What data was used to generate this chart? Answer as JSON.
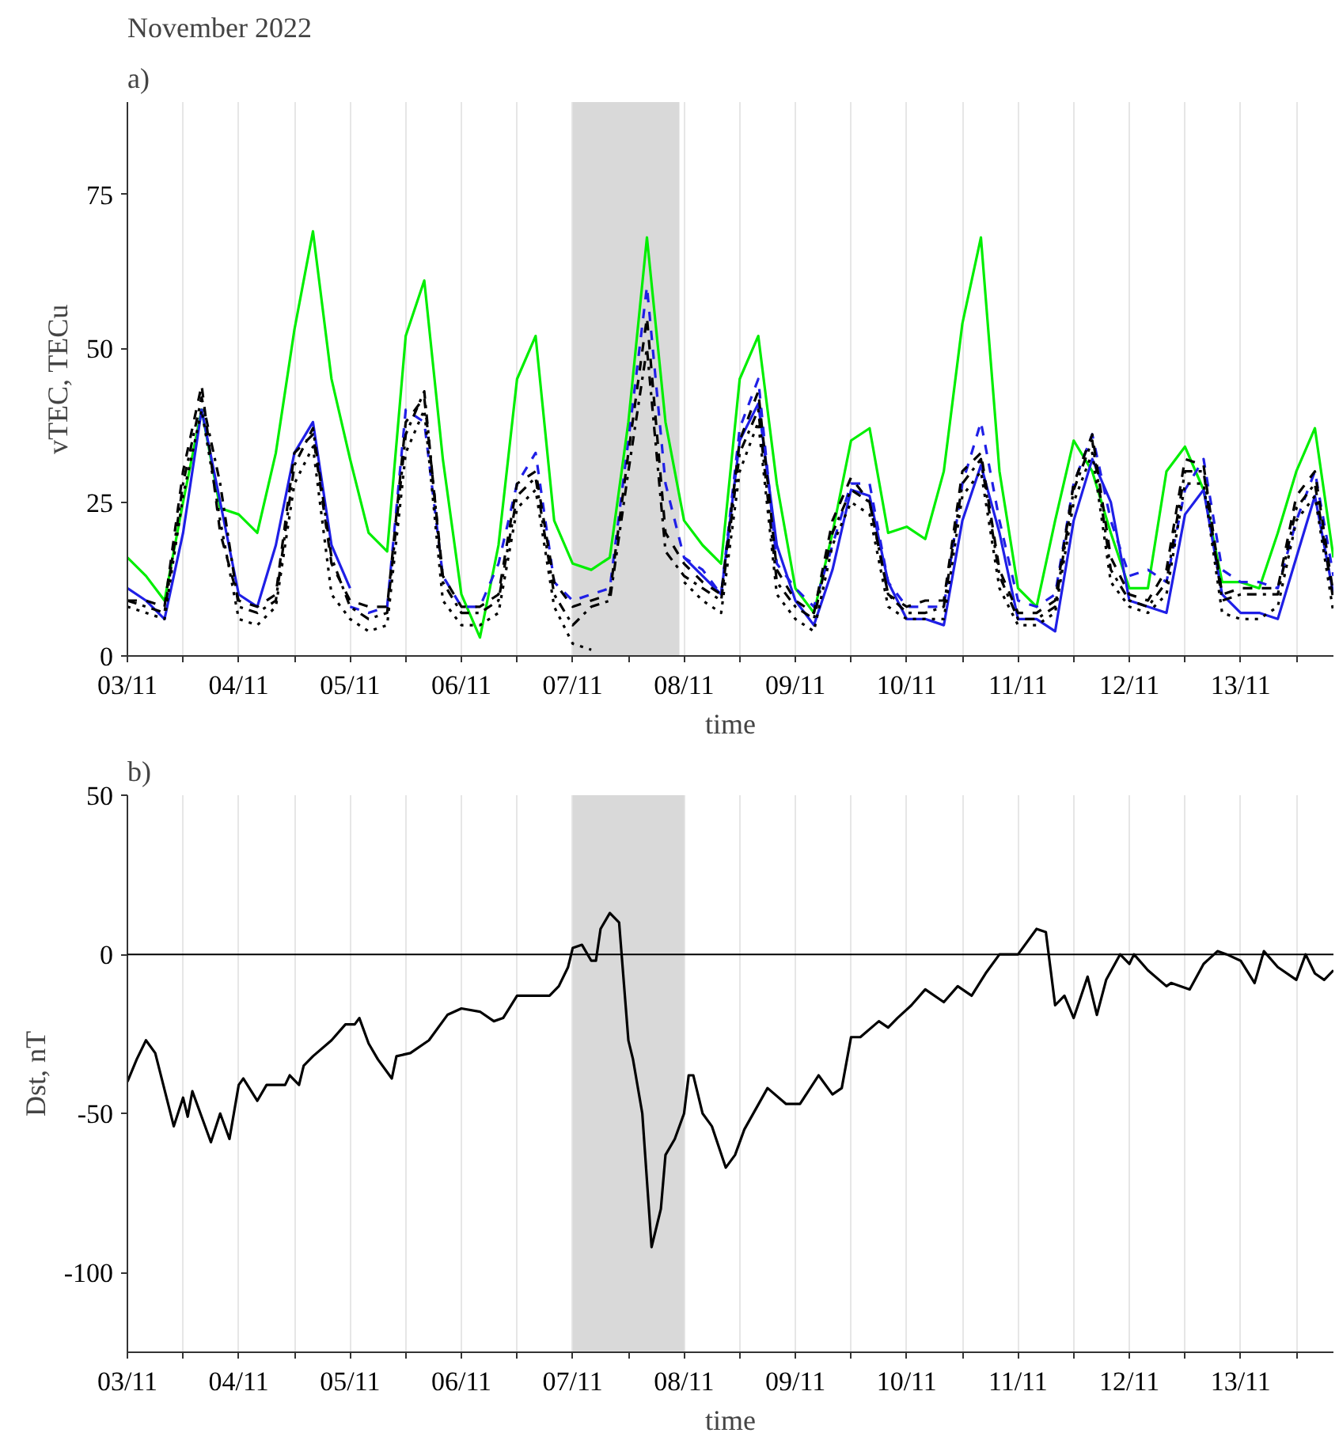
{
  "chart_data": [
    {
      "type": "line",
      "title": "November 2022",
      "subtitle": "a)",
      "xlabel": "time",
      "ylabel": "vTEC, TECu",
      "x": [
        "2022-11-03T00:00",
        "2022-11-03T04:00",
        "2022-11-03T08:00",
        "2022-11-03T12:00",
        "2022-11-03T16:00",
        "2022-11-03T20:00",
        "2022-11-04T00:00",
        "2022-11-04T04:00",
        "2022-11-04T08:00",
        "2022-11-04T12:00",
        "2022-11-04T16:00",
        "2022-11-04T20:00",
        "2022-11-05T00:00",
        "2022-11-05T04:00",
        "2022-11-05T08:00",
        "2022-11-05T12:00",
        "2022-11-05T16:00",
        "2022-11-05T20:00",
        "2022-11-06T00:00",
        "2022-11-06T04:00",
        "2022-11-06T08:00",
        "2022-11-06T12:00",
        "2022-11-06T16:00",
        "2022-11-06T20:00",
        "2022-11-07T00:00",
        "2022-11-07T04:00",
        "2022-11-07T08:00",
        "2022-11-07T12:00",
        "2022-11-07T16:00",
        "2022-11-07T20:00",
        "2022-11-08T00:00",
        "2022-11-08T04:00",
        "2022-11-08T08:00",
        "2022-11-08T12:00",
        "2022-11-08T16:00",
        "2022-11-08T20:00",
        "2022-11-09T00:00",
        "2022-11-09T04:00",
        "2022-11-09T08:00",
        "2022-11-09T12:00",
        "2022-11-09T16:00",
        "2022-11-09T20:00",
        "2022-11-10T00:00",
        "2022-11-10T04:00",
        "2022-11-10T08:00",
        "2022-11-10T12:00",
        "2022-11-10T16:00",
        "2022-11-10T20:00",
        "2022-11-11T00:00",
        "2022-11-11T04:00",
        "2022-11-11T08:00",
        "2022-11-11T12:00",
        "2022-11-11T16:00",
        "2022-11-11T20:00",
        "2022-11-12T00:00",
        "2022-11-12T04:00",
        "2022-11-12T08:00",
        "2022-11-12T12:00",
        "2022-11-12T16:00",
        "2022-11-12T20:00",
        "2022-11-13T00:00",
        "2022-11-13T04:00",
        "2022-11-13T08:00",
        "2022-11-13T12:00",
        "2022-11-13T16:00",
        "2022-11-13T20:00"
      ],
      "series": [
        {
          "color": "#00ee00",
          "line_style": "solid",
          "values": [
            16,
            13,
            9,
            25,
            40,
            24,
            23,
            20,
            33,
            53,
            69,
            45,
            32,
            20,
            17,
            52,
            61,
            32,
            10,
            3,
            18,
            45,
            52,
            22,
            15,
            14,
            16,
            38,
            68,
            38,
            22,
            18,
            15,
            45,
            52,
            28,
            11,
            7,
            20,
            35,
            37,
            20,
            21,
            19,
            30,
            54,
            68,
            30,
            11,
            8,
            22,
            35,
            30,
            20,
            11,
            11,
            30,
            34,
            27,
            12,
            12,
            11,
            20,
            30,
            37,
            16
          ]
        },
        {
          "color": "#1f1fe6",
          "line_style": "solid",
          "values": [
            11,
            9,
            6,
            20,
            40,
            25,
            10,
            8,
            18,
            33,
            38,
            18,
            11,
            null,
            null,
            null,
            null,
            null,
            null,
            null,
            null,
            null,
            null,
            null,
            null,
            null,
            null,
            null,
            null,
            null,
            16,
            13,
            10,
            35,
            41,
            18,
            9,
            5,
            14,
            27,
            26,
            12,
            6,
            6,
            5,
            22,
            31,
            20,
            6,
            6,
            4,
            22,
            32,
            25,
            9,
            8,
            7,
            23,
            27,
            10,
            7,
            7,
            6,
            16,
            26,
            10
          ]
        },
        {
          "color": "#1f1fe6",
          "line_style": "dashed",
          "values": [
            null,
            null,
            null,
            null,
            null,
            null,
            null,
            null,
            null,
            null,
            null,
            null,
            8,
            7,
            8,
            40,
            38,
            13,
            8,
            8,
            15,
            28,
            33,
            12,
            9,
            10,
            11,
            35,
            60,
            28,
            16,
            14,
            10,
            37,
            45,
            15,
            11,
            8,
            18,
            28,
            28,
            12,
            8,
            8,
            8,
            28,
            38,
            22,
            9,
            8,
            10,
            28,
            36,
            22,
            13,
            14,
            12,
            27,
            32,
            14,
            12,
            12,
            11,
            22,
            30,
            13
          ]
        },
        {
          "color": "#000000",
          "line_style": "dashed",
          "values": [
            9,
            9,
            8,
            30,
            44,
            20,
            9,
            8,
            10,
            33,
            36,
            15,
            9,
            8,
            8,
            38,
            42,
            13,
            8,
            8,
            10,
            28,
            30,
            12,
            8,
            9,
            10,
            33,
            55,
            20,
            15,
            12,
            10,
            35,
            43,
            14,
            9,
            7,
            22,
            29,
            25,
            10,
            8,
            9,
            9,
            30,
            33,
            14,
            7,
            7,
            9,
            28,
            36,
            16,
            10,
            9,
            14,
            32,
            31,
            10,
            11,
            11,
            11,
            26,
            30,
            10
          ]
        },
        {
          "color": "#000000",
          "line_style": "dashdot",
          "values": [
            9,
            8,
            7,
            28,
            42,
            28,
            8,
            7,
            9,
            31,
            37,
            16,
            8,
            6,
            7,
            36,
            43,
            12,
            7,
            7,
            9,
            26,
            29,
            10,
            5,
            8,
            9,
            30,
            50,
            17,
            13,
            11,
            9,
            33,
            40,
            12,
            8,
            6,
            20,
            27,
            25,
            10,
            7,
            7,
            8,
            28,
            32,
            13,
            6,
            6,
            8,
            27,
            35,
            14,
            9,
            8,
            12,
            30,
            30,
            9,
            10,
            10,
            10,
            24,
            28,
            9
          ]
        },
        {
          "color": "#000000",
          "line_style": "dotted",
          "values": [
            8,
            7,
            6,
            26,
            40,
            22,
            6,
            5,
            8,
            28,
            34,
            10,
            6,
            4,
            5,
            33,
            40,
            9,
            5,
            5,
            7,
            24,
            27,
            8,
            2,
            1,
            null,
            null,
            null,
            null,
            12,
            9,
            7,
            30,
            38,
            10,
            6,
            4,
            18,
            25,
            23,
            8,
            6,
            6,
            6,
            26,
            30,
            11,
            5,
            5,
            7,
            25,
            33,
            12,
            8,
            7,
            10,
            28,
            28,
            7,
            6,
            6,
            8,
            22,
            26,
            7
          ]
        }
      ],
      "xlim": [
        "2022-11-03T00:00",
        "2022-11-13T20:00"
      ],
      "xticks": [
        {
          "value": "2022-11-03",
          "label": "03/11"
        },
        {
          "value": "2022-11-03T12:00",
          "label": null
        },
        {
          "value": "2022-11-04",
          "label": "04/11"
        },
        {
          "value": "2022-11-04T12:00",
          "label": null
        },
        {
          "value": "2022-11-05",
          "label": "05/11"
        },
        {
          "value": "2022-11-05T12:00",
          "label": null
        },
        {
          "value": "2022-11-06",
          "label": "06/11"
        },
        {
          "value": "2022-11-06T12:00",
          "label": null
        },
        {
          "value": "2022-11-07",
          "label": "07/11"
        },
        {
          "value": "2022-11-07T12:00",
          "label": null
        },
        {
          "value": "2022-11-08",
          "label": "08/11"
        },
        {
          "value": "2022-11-08T12:00",
          "label": null
        },
        {
          "value": "2022-11-09",
          "label": "09/11"
        },
        {
          "value": "2022-11-09T12:00",
          "label": null
        },
        {
          "value": "2022-11-10",
          "label": "10/11"
        },
        {
          "value": "2022-11-10T12:00",
          "label": null
        },
        {
          "value": "2022-11-11",
          "label": "11/11"
        },
        {
          "value": "2022-11-11T12:00",
          "label": null
        },
        {
          "value": "2022-11-12",
          "label": "12/11"
        },
        {
          "value": "2022-11-12T12:00",
          "label": null
        },
        {
          "value": "2022-11-13",
          "label": "13/11"
        },
        {
          "value": "2022-11-13T12:00",
          "label": null
        }
      ],
      "ylim": [
        0,
        90
      ],
      "yticks": [
        0,
        25,
        50,
        75
      ],
      "grid": "x",
      "bands": [
        {
          "axis": "x",
          "from": "2022-11-07T00:00",
          "to": "2022-11-07T23:00",
          "color": "#d9d9d9"
        }
      ]
    },
    {
      "type": "line",
      "title": "b)",
      "xlabel": "time",
      "ylabel": "Dst, nT",
      "series": [
        {
          "color": "#000000",
          "line_style": "solid",
          "x": [
            "2022-11-03T00:00",
            "2022-11-03T02:00",
            "2022-11-03T04:00",
            "2022-11-03T06:00",
            "2022-11-03T10:00",
            "2022-11-03T12:00",
            "2022-11-03T13:00",
            "2022-11-03T14:00",
            "2022-11-03T18:00",
            "2022-11-03T20:00",
            "2022-11-03T22:00",
            "2022-11-04T00:00",
            "2022-11-04T01:00",
            "2022-11-04T04:00",
            "2022-11-04T06:00",
            "2022-11-04T10:00",
            "2022-11-04T11:00",
            "2022-11-04T13:00",
            "2022-11-04T14:00",
            "2022-11-04T16:00",
            "2022-11-04T20:00",
            "2022-11-04T23:00",
            "2022-11-05T01:00",
            "2022-11-05T02:00",
            "2022-11-05T04:00",
            "2022-11-05T06:00",
            "2022-11-05T09:00",
            "2022-11-05T10:00",
            "2022-11-05T13:00",
            "2022-11-05T17:00",
            "2022-11-05T21:00",
            "2022-11-06T00:00",
            "2022-11-06T04:00",
            "2022-11-06T07:00",
            "2022-11-06T09:00",
            "2022-11-06T12:00",
            "2022-11-06T15:00",
            "2022-11-06T19:00",
            "2022-11-06T21:00",
            "2022-11-06T23:00",
            "2022-11-07T00:00",
            "2022-11-07T02:00",
            "2022-11-07T04:00",
            "2022-11-07T05:00",
            "2022-11-07T06:00",
            "2022-11-07T08:00",
            "2022-11-07T10:00",
            "2022-11-07T12:00",
            "2022-11-07T13:00",
            "2022-11-07T15:00",
            "2022-11-07T17:00",
            "2022-11-07T19:00",
            "2022-11-07T20:00",
            "2022-11-07T22:00",
            "2022-11-08T00:00",
            "2022-11-08T01:00",
            "2022-11-08T02:00",
            "2022-11-08T04:00",
            "2022-11-08T06:00",
            "2022-11-08T09:00",
            "2022-11-08T11:00",
            "2022-11-08T13:00",
            "2022-11-08T18:00",
            "2022-11-08T22:00",
            "2022-11-09T01:00",
            "2022-11-09T05:00",
            "2022-11-09T08:00",
            "2022-11-09T10:00",
            "2022-11-09T12:00",
            "2022-11-09T14:00",
            "2022-11-09T18:00",
            "2022-11-09T20:00",
            "2022-11-09T22:00",
            "2022-11-10T01:00",
            "2022-11-10T04:00",
            "2022-11-10T08:00",
            "2022-11-10T11:00",
            "2022-11-10T14:00",
            "2022-11-10T17:00",
            "2022-11-10T20:00",
            "2022-11-11T00:00",
            "2022-11-11T04:00",
            "2022-11-11T06:00",
            "2022-11-11T08:00",
            "2022-11-11T10:00",
            "2022-11-11T12:00",
            "2022-11-11T15:00",
            "2022-11-11T17:00",
            "2022-11-11T19:00",
            "2022-11-11T22:00",
            "2022-11-12T00:00",
            "2022-11-12T01:00",
            "2022-11-12T04:00",
            "2022-11-12T08:00",
            "2022-11-12T09:00",
            "2022-11-12T13:00",
            "2022-11-12T16:00",
            "2022-11-12T19:00",
            "2022-11-12T21:00",
            "2022-11-13T00:00",
            "2022-11-13T03:00",
            "2022-11-13T05:00",
            "2022-11-13T08:00",
            "2022-11-13T12:00",
            "2022-11-13T14:00",
            "2022-11-13T16:00",
            "2022-11-13T18:00",
            "2022-11-13T20:00"
          ],
          "values": [
            -40,
            -33,
            -27,
            -31,
            -54,
            -45,
            -51,
            -43,
            -59,
            -50,
            -58,
            -41,
            -39,
            -46,
            -41,
            -41,
            -38,
            -41,
            -35,
            -32,
            -27,
            -22,
            -22,
            -20,
            -28,
            -33,
            -39,
            -32,
            -31,
            -27,
            -19,
            -17,
            -18,
            -21,
            -20,
            -13,
            -13,
            -13,
            -10,
            -4,
            2,
            3,
            -2,
            -2,
            8,
            13,
            10,
            -27,
            -33,
            -50,
            -92,
            -80,
            -63,
            -58,
            -50,
            -38,
            -38,
            -50,
            -54,
            -67,
            -63,
            -55,
            -42,
            -47,
            -47,
            -38,
            -44,
            -42,
            -26,
            -26,
            -21,
            -23,
            -20,
            -16,
            -11,
            -15,
            -10,
            -13,
            -6,
            0,
            0,
            8,
            7,
            -16,
            -13,
            -20,
            -7,
            -19,
            -8,
            0,
            -3,
            0,
            -5,
            -10,
            -9,
            -11,
            -3,
            1,
            0,
            -2,
            -9,
            1,
            -4,
            -8,
            0,
            -6,
            -8,
            -5
          ]
        }
      ],
      "xlim": [
        "2022-11-03T00:00",
        "2022-11-13T20:00"
      ],
      "xticks": [
        {
          "value": "2022-11-03",
          "label": "03/11"
        },
        {
          "value": "2022-11-03T12:00",
          "label": null
        },
        {
          "value": "2022-11-04",
          "label": "04/11"
        },
        {
          "value": "2022-11-04T12:00",
          "label": null
        },
        {
          "value": "2022-11-05",
          "label": "05/11"
        },
        {
          "value": "2022-11-05T12:00",
          "label": null
        },
        {
          "value": "2022-11-06",
          "label": "06/11"
        },
        {
          "value": "2022-11-06T12:00",
          "label": null
        },
        {
          "value": "2022-11-07",
          "label": "07/11"
        },
        {
          "value": "2022-11-07T12:00",
          "label": null
        },
        {
          "value": "2022-11-08",
          "label": "08/11"
        },
        {
          "value": "2022-11-08T12:00",
          "label": null
        },
        {
          "value": "2022-11-09",
          "label": "09/11"
        },
        {
          "value": "2022-11-09T12:00",
          "label": null
        },
        {
          "value": "2022-11-10",
          "label": "10/11"
        },
        {
          "value": "2022-11-10T12:00",
          "label": null
        },
        {
          "value": "2022-11-11",
          "label": "11/11"
        },
        {
          "value": "2022-11-11T12:00",
          "label": null
        },
        {
          "value": "2022-11-12",
          "label": "12/11"
        },
        {
          "value": "2022-11-12T12:00",
          "label": null
        },
        {
          "value": "2022-11-13",
          "label": "13/11"
        },
        {
          "value": "2022-11-13T12:00",
          "label": null
        }
      ],
      "ylim": [
        -125,
        50
      ],
      "yticks": [
        -100,
        -50,
        0,
        50
      ],
      "grid": "x",
      "ref_lines": [
        {
          "axis": "y",
          "value": 0,
          "color": "#000000"
        }
      ],
      "bands": [
        {
          "axis": "x",
          "from": "2022-11-07T00:00",
          "to": "2022-11-08T00:00",
          "color": "#d9d9d9"
        }
      ]
    }
  ]
}
